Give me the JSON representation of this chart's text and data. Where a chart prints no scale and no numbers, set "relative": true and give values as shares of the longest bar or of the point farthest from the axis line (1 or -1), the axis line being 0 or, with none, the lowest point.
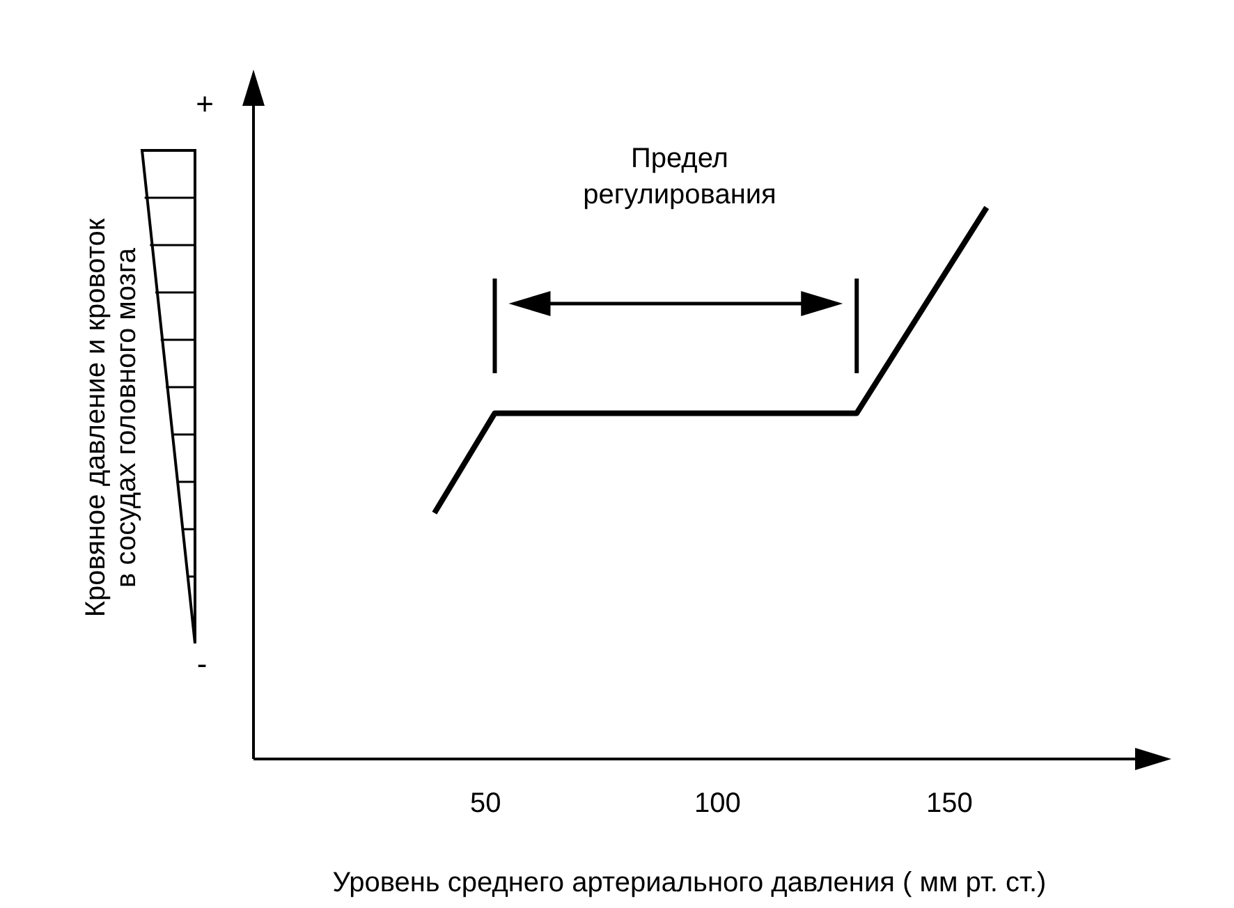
{
  "chart_data": {
    "type": "line",
    "relative": true,
    "ylabel": "Кровяное давление и кровоток\nв сосудах головного мозга",
    "xlabel": "Уровень среднего артериального давления ( мм рт. ст.)",
    "annotations": [
      "Предел\nрегулирования",
      "+",
      "-"
    ],
    "x": [
      39,
      52,
      130,
      158
    ],
    "series": [
      {
        "color": "#000000",
        "values": [
          0.446,
          0.627,
          0.627,
          1
        ]
      }
    ],
    "xlim": [
      0,
      196
    ],
    "xticks": [
      50,
      100,
      150
    ],
    "ref_lines": [
      {
        "axis": "x",
        "value": 52
      },
      {
        "axis": "x",
        "value": 130
      }
    ],
    "grid": false
  }
}
